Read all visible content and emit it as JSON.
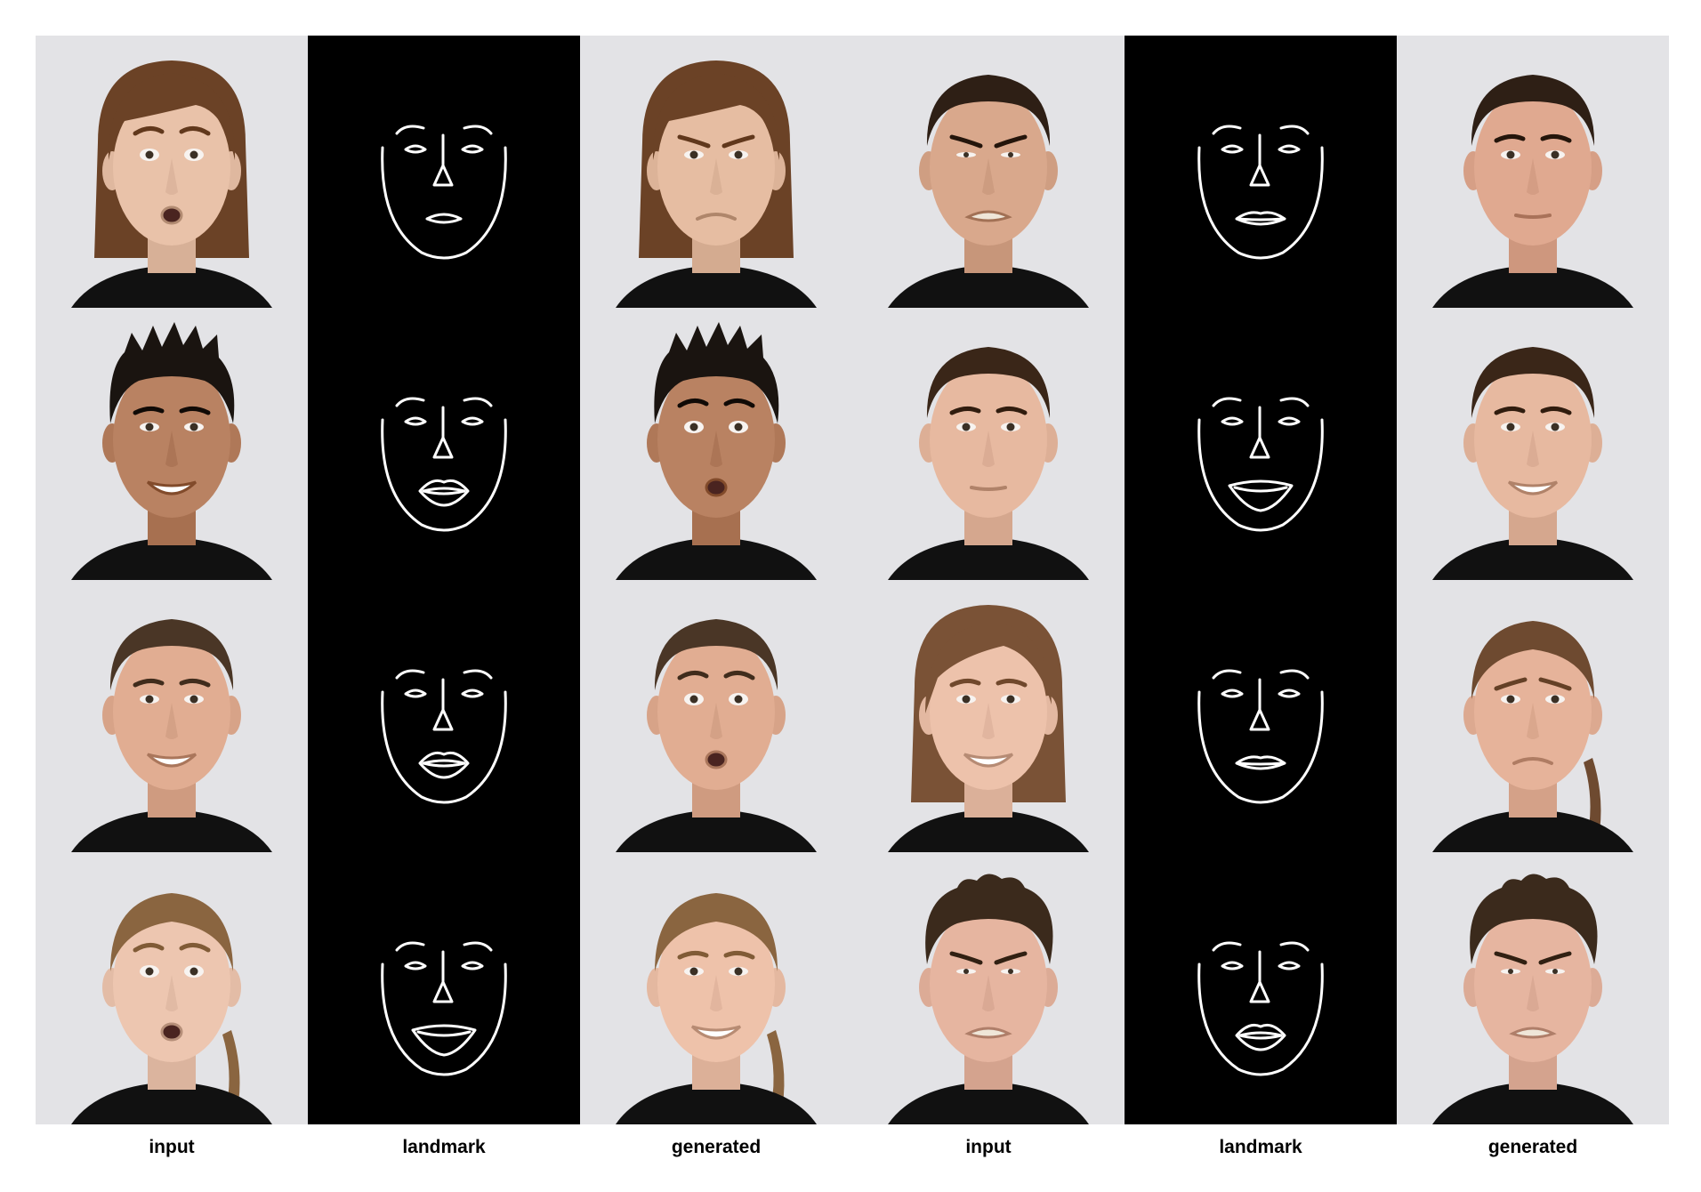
{
  "column_labels": [
    "input",
    "landmark",
    "generated",
    "input",
    "landmark",
    "generated"
  ],
  "rows": [
    {
      "left": {
        "input": {
          "hair": "#6b4226",
          "hair_style": "bob",
          "skin": "#e9c2a9",
          "expression": "surprise",
          "shirt": "#111111"
        },
        "landmark": {
          "mouth": "pursed"
        },
        "generated": {
          "hair": "#6b4226",
          "hair_style": "bob",
          "skin": "#e6bda2",
          "expression": "frown",
          "shirt": "#111111"
        }
      },
      "right": {
        "input": {
          "hair": "#2e1f15",
          "hair_style": "short",
          "skin": "#d9a88c",
          "expression": "disgust",
          "shirt": "#111111"
        },
        "landmark": {
          "mouth": "closed"
        },
        "generated": {
          "hair": "#2e1f15",
          "hair_style": "short",
          "skin": "#e0a990",
          "expression": "neutral",
          "shirt": "#111111"
        }
      }
    },
    {
      "left": {
        "input": {
          "hair": "#1a1410",
          "hair_style": "spiky",
          "skin": "#b98262",
          "expression": "happy",
          "shirt": "#111111"
        },
        "landmark": {
          "mouth": "open"
        },
        "generated": {
          "hair": "#1a1410",
          "hair_style": "spiky",
          "skin": "#b98262",
          "expression": "surprise",
          "shirt": "#111111"
        }
      },
      "right": {
        "input": {
          "hair": "#3a2618",
          "hair_style": "short",
          "skin": "#e7b9a0",
          "expression": "neutral",
          "shirt": "#111111"
        },
        "landmark": {
          "mouth": "smile"
        },
        "generated": {
          "hair": "#3a2618",
          "hair_style": "short",
          "skin": "#e7b9a0",
          "expression": "happy",
          "shirt": "#111111"
        }
      }
    },
    {
      "left": {
        "input": {
          "hair": "#4a3626",
          "hair_style": "short",
          "skin": "#e1ad92",
          "expression": "happy",
          "shirt": "#111111"
        },
        "landmark": {
          "mouth": "open"
        },
        "generated": {
          "hair": "#4a3626",
          "hair_style": "short",
          "skin": "#e1ad92",
          "expression": "fear",
          "shirt": "#111111"
        }
      },
      "right": {
        "input": {
          "hair": "#7a5236",
          "hair_style": "long",
          "skin": "#edc2ab",
          "expression": "happy",
          "shirt": "#111111"
        },
        "landmark": {
          "mouth": "closed"
        },
        "generated": {
          "hair": "#6e4a30",
          "hair_style": "tied",
          "skin": "#e6b39a",
          "expression": "sad",
          "shirt": "#111111"
        }
      }
    },
    {
      "left": {
        "input": {
          "hair": "#8a6540",
          "hair_style": "tied",
          "skin": "#edc6b0",
          "expression": "surprise",
          "shirt": "#111111"
        },
        "landmark": {
          "mouth": "smile"
        },
        "generated": {
          "hair": "#8a6540",
          "hair_style": "tied",
          "skin": "#eec2aa",
          "expression": "happy",
          "shirt": "#111111"
        }
      },
      "right": {
        "input": {
          "hair": "#3b2a1c",
          "hair_style": "curly",
          "skin": "#e6b5a0",
          "expression": "disgust",
          "shirt": "#111111"
        },
        "landmark": {
          "mouth": "open"
        },
        "generated": {
          "hair": "#3b2a1c",
          "hair_style": "curly",
          "skin": "#e6b5a0",
          "expression": "disgust",
          "shirt": "#111111"
        }
      }
    }
  ]
}
